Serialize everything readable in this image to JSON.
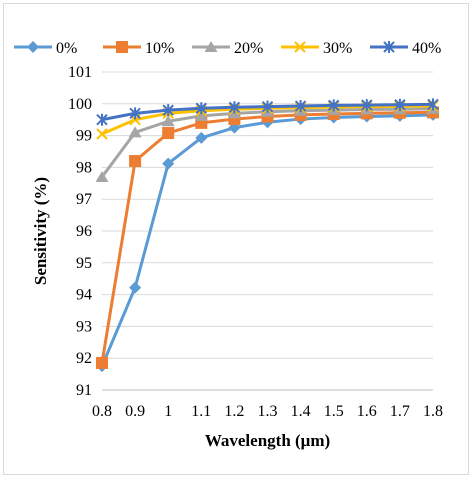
{
  "chart_data": {
    "type": "line",
    "title": "",
    "xlabel": "Wavelength (μm)",
    "ylabel": "Sensitivity (%)",
    "x": [
      "0.8",
      "0.9",
      "1",
      "1.1",
      "1.2",
      "1.3",
      "1.4",
      "1.5",
      "1.6",
      "1.7",
      "1.8"
    ],
    "ylim": [
      91,
      101
    ],
    "yticks": [
      "91",
      "92",
      "93",
      "94",
      "95",
      "96",
      "97",
      "98",
      "99",
      "100",
      "101"
    ],
    "grid": "horizontal",
    "legend_position": "top",
    "series": [
      {
        "name": "0%",
        "color": "#5b9bd5",
        "marker": "diamond",
        "values": [
          91.75,
          94.22,
          98.12,
          98.93,
          99.25,
          99.42,
          99.52,
          99.57,
          99.6,
          99.62,
          99.65
        ]
      },
      {
        "name": "10%",
        "color": "#ed7d31",
        "marker": "square",
        "values": [
          91.85,
          98.2,
          99.08,
          99.4,
          99.52,
          99.6,
          99.65,
          99.68,
          99.7,
          99.72,
          99.73
        ]
      },
      {
        "name": "20%",
        "color": "#a5a5a5",
        "marker": "triangle",
        "values": [
          97.7,
          99.1,
          99.45,
          99.62,
          99.7,
          99.75,
          99.78,
          99.8,
          99.82,
          99.83,
          99.84
        ]
      },
      {
        "name": "30%",
        "color": "#ffc000",
        "marker": "x",
        "values": [
          99.05,
          99.5,
          99.7,
          99.78,
          99.83,
          99.86,
          99.88,
          99.9,
          99.91,
          99.92,
          99.93
        ]
      },
      {
        "name": "40%",
        "color": "#4472c4",
        "marker": "asterisk",
        "values": [
          99.5,
          99.7,
          99.8,
          99.86,
          99.89,
          99.91,
          99.93,
          99.95,
          99.96,
          99.97,
          99.98
        ]
      }
    ]
  }
}
